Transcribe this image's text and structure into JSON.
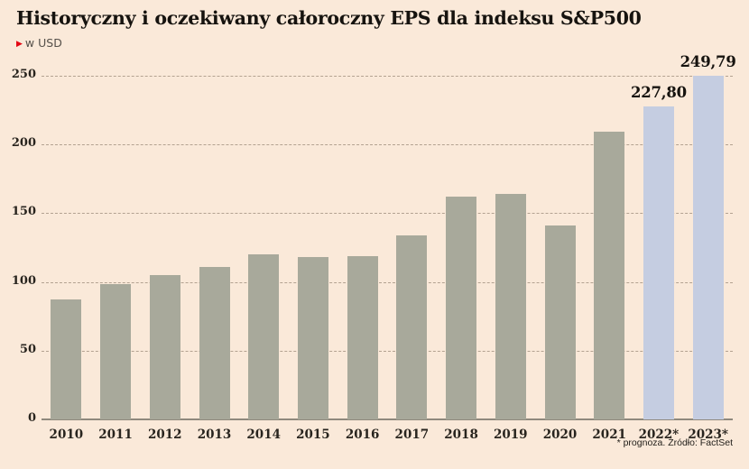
{
  "page": {
    "background": "#fae9d9"
  },
  "header": {
    "title": "Historyczny i oczekiwany całoroczny EPS dla indeksu S&P500",
    "subtitle": {
      "icon": "▶",
      "label": "w USD"
    }
  },
  "chart_data": {
    "type": "bar",
    "title": "Historyczny i oczekiwany całoroczny EPS dla indeksu S&P500",
    "unit": "w USD",
    "categories": [
      "2010",
      "2011",
      "2012",
      "2013",
      "2014",
      "2015",
      "2016",
      "2017",
      "2018",
      "2019",
      "2020",
      "2021",
      "2022*",
      "2023*"
    ],
    "values": [
      87.5,
      98.5,
      105,
      111,
      120,
      118,
      119,
      134,
      162,
      164,
      141,
      209,
      227.8,
      249.79
    ],
    "point_labels": [
      null,
      null,
      null,
      null,
      null,
      null,
      null,
      null,
      null,
      null,
      null,
      null,
      "227,80",
      "249,79"
    ],
    "forecast": [
      false,
      false,
      false,
      false,
      false,
      false,
      false,
      false,
      false,
      false,
      false,
      false,
      true,
      true
    ],
    "yticks": [
      0,
      50,
      100,
      150,
      200,
      250
    ],
    "ylim": [
      0,
      262
    ],
    "grid": "horizontal-dashed",
    "legend": "none",
    "xlabel": "",
    "ylabel": "w USD",
    "colors": {
      "actual_bar": "#a8a99b",
      "forecast_bar": "#c5cde1",
      "grid": "#b3a291",
      "axis": "#8f897d",
      "text": "#28241e",
      "accent_red": "#e30613",
      "background": "#fae9d9"
    },
    "footnote": "* prognoza. Źródło: FactSet"
  }
}
